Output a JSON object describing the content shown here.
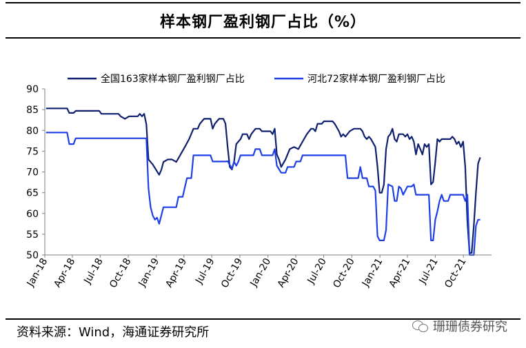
{
  "title": "样本钢厂盈利钢厂占比（%）",
  "source": "资料来源：Wind，海通证券研究所",
  "watermark": "珊珊债券研究",
  "colors": {
    "series1": "#0D1F6E",
    "series2": "#1F3FE6",
    "axis": "#7f7f7f"
  },
  "chart_data": {
    "type": "line",
    "ylim": [
      50,
      90
    ],
    "yticks": [
      50,
      55,
      60,
      65,
      70,
      75,
      80,
      85,
      90
    ],
    "xlim": [
      "2018-01",
      "2022-01"
    ],
    "xticks": [
      "Jan-18",
      "Apr-18",
      "Jul-18",
      "Oct-18",
      "Jan-19",
      "Apr-19",
      "Jul-19",
      "Oct-19",
      "Jan-20",
      "Apr-20",
      "Jul-20",
      "Oct-20",
      "Jan-21",
      "Apr-21",
      "Jul-21",
      "Oct-21"
    ],
    "legend_position": "top",
    "series": [
      {
        "name": "全国163家样本钢厂盈利钢厂占比",
        "points": [
          [
            "2018-01-05",
            85.3
          ],
          [
            "2018-03-15",
            85.3
          ],
          [
            "2018-03-22",
            84.2
          ],
          [
            "2018-04-05",
            84.2
          ],
          [
            "2018-04-12",
            84.7
          ],
          [
            "2018-06-28",
            84.7
          ],
          [
            "2018-07-05",
            84.0
          ],
          [
            "2018-08-30",
            84.0
          ],
          [
            "2018-09-06",
            83.4
          ],
          [
            "2018-09-20",
            82.8
          ],
          [
            "2018-10-04",
            83.4
          ],
          [
            "2018-11-01",
            83.4
          ],
          [
            "2018-11-08",
            84.0
          ],
          [
            "2018-11-15",
            83.4
          ],
          [
            "2018-11-22",
            84.0
          ],
          [
            "2018-11-29",
            81.5
          ],
          [
            "2018-12-06",
            73.0
          ],
          [
            "2018-12-20",
            71.8
          ],
          [
            "2019-01-10",
            69.3
          ],
          [
            "2019-01-17",
            70.5
          ],
          [
            "2019-01-24",
            72.4
          ],
          [
            "2019-02-07",
            73.0
          ],
          [
            "2019-02-21",
            73.0
          ],
          [
            "2019-03-07",
            72.4
          ],
          [
            "2019-03-21",
            74.2
          ],
          [
            "2019-04-04",
            76.0
          ],
          [
            "2019-04-18",
            77.9
          ],
          [
            "2019-05-02",
            80.4
          ],
          [
            "2019-05-16",
            80.4
          ],
          [
            "2019-05-23",
            81.6
          ],
          [
            "2019-06-06",
            82.8
          ],
          [
            "2019-06-27",
            82.8
          ],
          [
            "2019-07-04",
            80.4
          ],
          [
            "2019-07-11",
            81.6
          ],
          [
            "2019-07-25",
            82.8
          ],
          [
            "2019-08-08",
            82.8
          ],
          [
            "2019-08-15",
            81.6
          ],
          [
            "2019-08-22",
            76.0
          ],
          [
            "2019-08-29",
            71.2
          ],
          [
            "2019-09-05",
            70.6
          ],
          [
            "2019-09-12",
            72.4
          ],
          [
            "2019-09-19",
            76.7
          ],
          [
            "2019-10-03",
            77.9
          ],
          [
            "2019-10-10",
            79.1
          ],
          [
            "2019-10-24",
            79.1
          ],
          [
            "2019-10-31",
            77.9
          ],
          [
            "2019-11-07",
            79.1
          ],
          [
            "2019-11-21",
            80.4
          ],
          [
            "2019-12-05",
            80.4
          ],
          [
            "2019-12-12",
            79.8
          ],
          [
            "2019-12-26",
            79.8
          ],
          [
            "2020-01-09",
            79.8
          ],
          [
            "2020-01-16",
            79.1
          ],
          [
            "2020-01-23",
            80.4
          ],
          [
            "2020-01-30",
            74.2
          ],
          [
            "2020-02-06",
            73.0
          ],
          [
            "2020-02-13",
            71.2
          ],
          [
            "2020-02-27",
            73.0
          ],
          [
            "2020-03-12",
            75.5
          ],
          [
            "2020-03-26",
            76.0
          ],
          [
            "2020-04-09",
            75.5
          ],
          [
            "2020-04-23",
            77.3
          ],
          [
            "2020-05-07",
            79.1
          ],
          [
            "2020-05-21",
            80.4
          ],
          [
            "2020-05-28",
            80.4
          ],
          [
            "2020-06-04",
            79.8
          ],
          [
            "2020-06-11",
            81.6
          ],
          [
            "2020-06-25",
            81.6
          ],
          [
            "2020-07-02",
            82.2
          ],
          [
            "2020-07-30",
            82.2
          ],
          [
            "2020-08-06",
            81.6
          ],
          [
            "2020-08-20",
            79.8
          ],
          [
            "2020-08-27",
            78.5
          ],
          [
            "2020-09-03",
            79.1
          ],
          [
            "2020-09-10",
            78.5
          ],
          [
            "2020-09-24",
            79.8
          ],
          [
            "2020-10-08",
            80.4
          ],
          [
            "2020-10-29",
            80.4
          ],
          [
            "2020-11-05",
            79.8
          ],
          [
            "2020-11-12",
            78.5
          ],
          [
            "2020-11-19",
            77.9
          ],
          [
            "2020-11-26",
            78.5
          ],
          [
            "2020-12-03",
            77.9
          ],
          [
            "2020-12-17",
            76.0
          ],
          [
            "2020-12-24",
            71.2
          ],
          [
            "2020-12-31",
            65.0
          ],
          [
            "2021-01-07",
            65.0
          ],
          [
            "2021-01-14",
            67.0
          ],
          [
            "2021-01-21",
            75.5
          ],
          [
            "2021-01-28",
            78.5
          ],
          [
            "2021-02-04",
            79.1
          ],
          [
            "2021-02-11",
            80.4
          ],
          [
            "2021-02-18",
            77.9
          ],
          [
            "2021-02-25",
            77.3
          ],
          [
            "2021-03-04",
            79.1
          ],
          [
            "2021-03-18",
            79.1
          ],
          [
            "2021-03-25",
            78.5
          ],
          [
            "2021-04-01",
            79.1
          ],
          [
            "2021-04-08",
            77.9
          ],
          [
            "2021-04-15",
            78.5
          ],
          [
            "2021-04-22",
            77.3
          ],
          [
            "2021-04-29",
            74.2
          ],
          [
            "2021-05-06",
            76.7
          ],
          [
            "2021-05-13",
            75.5
          ],
          [
            "2021-05-20",
            74.2
          ],
          [
            "2021-05-27",
            76.7
          ],
          [
            "2021-06-03",
            76.0
          ],
          [
            "2021-06-10",
            76.7
          ],
          [
            "2021-06-17",
            67.0
          ],
          [
            "2021-06-24",
            67.6
          ],
          [
            "2021-07-01",
            72.4
          ],
          [
            "2021-07-08",
            77.9
          ],
          [
            "2021-07-15",
            77.3
          ],
          [
            "2021-07-22",
            77.9
          ],
          [
            "2021-08-05",
            77.9
          ],
          [
            "2021-08-19",
            77.9
          ],
          [
            "2021-08-26",
            78.5
          ],
          [
            "2021-09-02",
            77.9
          ],
          [
            "2021-09-09",
            76.7
          ],
          [
            "2021-09-16",
            77.3
          ],
          [
            "2021-09-23",
            76.0
          ],
          [
            "2021-09-30",
            77.3
          ],
          [
            "2021-10-07",
            71.2
          ],
          [
            "2021-10-14",
            58.0
          ],
          [
            "2021-10-21",
            50.5
          ],
          [
            "2021-10-28",
            50.5
          ],
          [
            "2021-11-04",
            57.0
          ],
          [
            "2021-11-11",
            65.0
          ],
          [
            "2021-11-18",
            72.0
          ],
          [
            "2021-11-25",
            73.5
          ]
        ]
      },
      {
        "name": "河北72家样本钢厂盈利钢厂占比",
        "points": [
          [
            "2018-01-05",
            79.5
          ],
          [
            "2018-03-15",
            79.5
          ],
          [
            "2018-03-22",
            76.7
          ],
          [
            "2018-04-05",
            76.7
          ],
          [
            "2018-04-12",
            78.1
          ],
          [
            "2018-11-29",
            78.1
          ],
          [
            "2018-12-06",
            66.0
          ],
          [
            "2018-12-13",
            61.5
          ],
          [
            "2018-12-20",
            59.5
          ],
          [
            "2018-12-27",
            58.5
          ],
          [
            "2019-01-03",
            59.0
          ],
          [
            "2019-01-10",
            57.5
          ],
          [
            "2019-01-24",
            61.5
          ],
          [
            "2019-03-07",
            61.5
          ],
          [
            "2019-03-14",
            64.0
          ],
          [
            "2019-03-28",
            64.0
          ],
          [
            "2019-04-11",
            68.5
          ],
          [
            "2019-04-25",
            68.5
          ],
          [
            "2019-05-02",
            74.0
          ],
          [
            "2019-06-27",
            74.0
          ],
          [
            "2019-07-04",
            72.5
          ],
          [
            "2019-08-15",
            72.5
          ],
          [
            "2019-08-22",
            72.6
          ],
          [
            "2019-09-05",
            70.8
          ],
          [
            "2019-09-12",
            72.5
          ],
          [
            "2019-09-19",
            71.5
          ],
          [
            "2019-09-26",
            72.5
          ],
          [
            "2019-10-03",
            74.0
          ],
          [
            "2019-11-14",
            74.0
          ],
          [
            "2019-11-21",
            75.5
          ],
          [
            "2019-12-05",
            75.5
          ],
          [
            "2019-12-12",
            74.0
          ],
          [
            "2020-01-16",
            74.0
          ],
          [
            "2020-01-23",
            75.5
          ],
          [
            "2020-01-30",
            71.5
          ],
          [
            "2020-02-13",
            69.8
          ],
          [
            "2020-02-27",
            69.8
          ],
          [
            "2020-03-05",
            71.2
          ],
          [
            "2020-03-26",
            71.2
          ],
          [
            "2020-04-02",
            72.5
          ],
          [
            "2020-04-16",
            72.5
          ],
          [
            "2020-04-23",
            74.0
          ],
          [
            "2020-09-10",
            74.0
          ],
          [
            "2020-09-17",
            68.5
          ],
          [
            "2020-10-22",
            68.5
          ],
          [
            "2020-10-29",
            71.2
          ],
          [
            "2020-11-05",
            68.5
          ],
          [
            "2020-11-19",
            68.5
          ],
          [
            "2020-11-26",
            66.5
          ],
          [
            "2020-12-10",
            66.5
          ],
          [
            "2020-12-17",
            65.5
          ],
          [
            "2020-12-24",
            54.5
          ],
          [
            "2020-12-31",
            53.5
          ],
          [
            "2021-01-14",
            53.5
          ],
          [
            "2021-01-21",
            56.0
          ],
          [
            "2021-01-28",
            67.0
          ],
          [
            "2021-02-11",
            66.5
          ],
          [
            "2021-02-18",
            63.0
          ],
          [
            "2021-02-25",
            63.0
          ],
          [
            "2021-03-04",
            66.5
          ],
          [
            "2021-03-11",
            66.0
          ],
          [
            "2021-03-18",
            64.5
          ],
          [
            "2021-03-25",
            65.5
          ],
          [
            "2021-04-01",
            66.5
          ],
          [
            "2021-04-15",
            66.5
          ],
          [
            "2021-04-22",
            67.0
          ],
          [
            "2021-04-29",
            64.5
          ],
          [
            "2021-06-10",
            64.5
          ],
          [
            "2021-06-17",
            53.5
          ],
          [
            "2021-06-24",
            53.5
          ],
          [
            "2021-07-01",
            58.5
          ],
          [
            "2021-07-08",
            60.5
          ],
          [
            "2021-07-15",
            63.0
          ],
          [
            "2021-07-22",
            64.5
          ],
          [
            "2021-07-29",
            63.0
          ],
          [
            "2021-08-12",
            63.0
          ],
          [
            "2021-08-19",
            64.5
          ],
          [
            "2021-09-30",
            64.5
          ],
          [
            "2021-10-07",
            63.0
          ],
          [
            "2021-10-14",
            64.5
          ],
          [
            "2021-10-21",
            50.0
          ],
          [
            "2021-11-04",
            50.0
          ],
          [
            "2021-11-11",
            57.0
          ],
          [
            "2021-11-18",
            58.5
          ],
          [
            "2021-11-25",
            58.5
          ]
        ]
      }
    ]
  }
}
